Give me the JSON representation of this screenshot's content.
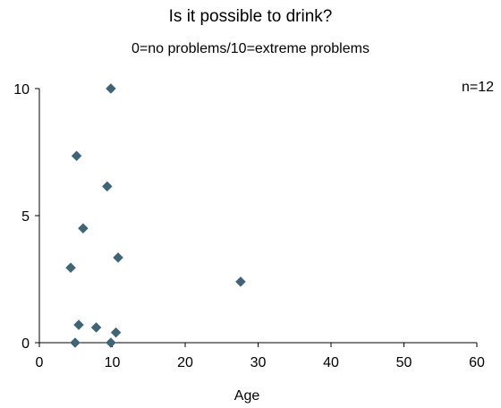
{
  "chart_data": {
    "type": "scatter",
    "title": "Is it possible to drink?",
    "subtitle": "0=no problems/10=extreme problems",
    "annotation": "n=12",
    "xlabel": "Age",
    "ylabel": "",
    "xlim": [
      0,
      60
    ],
    "ylim": [
      0,
      10
    ],
    "xticks": [
      0,
      10,
      20,
      30,
      40,
      50,
      60
    ],
    "yticks": [
      0,
      5,
      10
    ],
    "grid": false,
    "legend": "none",
    "marker": "diamond",
    "color": "#3f6478",
    "points": [
      {
        "x": 9.8,
        "y": 10.0
      },
      {
        "x": 5.1,
        "y": 7.35
      },
      {
        "x": 9.3,
        "y": 6.15
      },
      {
        "x": 6.0,
        "y": 4.5
      },
      {
        "x": 10.8,
        "y": 3.35
      },
      {
        "x": 4.3,
        "y": 2.95
      },
      {
        "x": 27.6,
        "y": 2.4
      },
      {
        "x": 5.4,
        "y": 0.7
      },
      {
        "x": 7.8,
        "y": 0.6
      },
      {
        "x": 10.5,
        "y": 0.4
      },
      {
        "x": 4.9,
        "y": 0.0
      },
      {
        "x": 9.8,
        "y": 0.0
      }
    ]
  }
}
